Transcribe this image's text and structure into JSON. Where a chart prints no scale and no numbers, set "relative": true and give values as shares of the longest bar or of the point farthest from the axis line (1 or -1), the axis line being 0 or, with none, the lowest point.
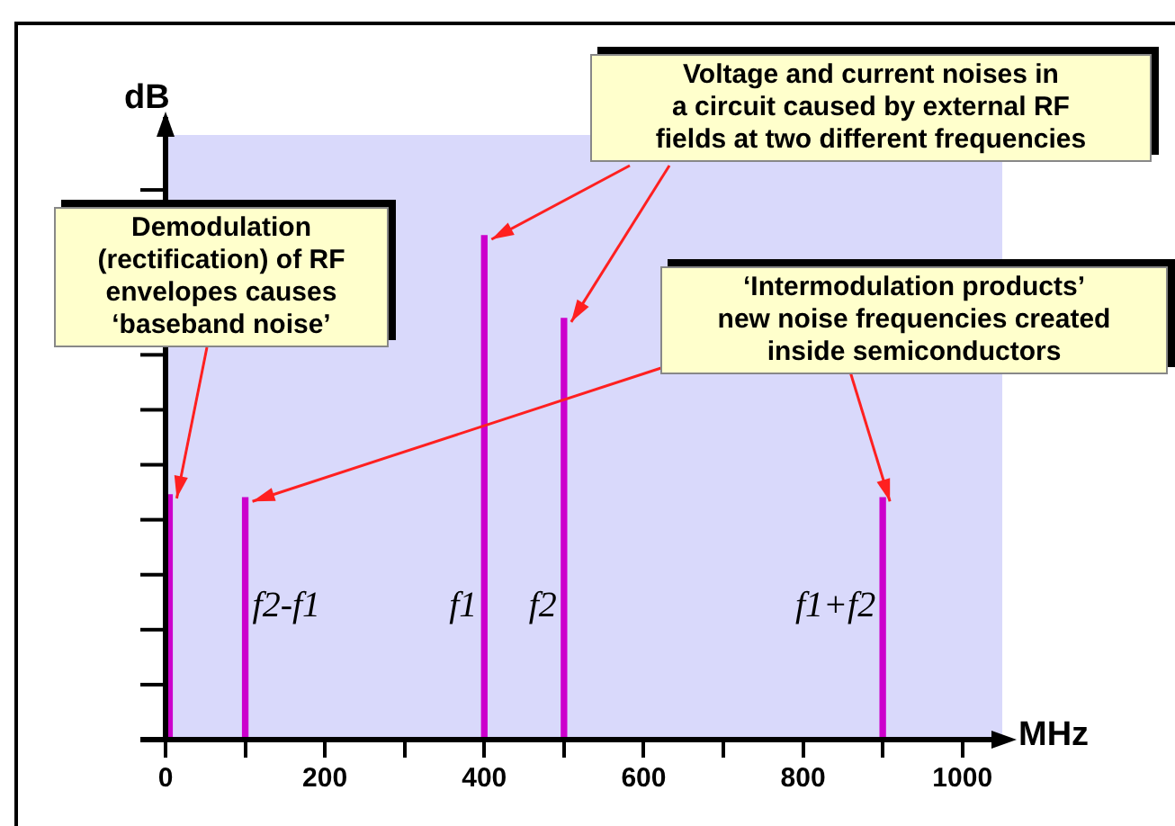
{
  "chart_data": {
    "type": "bar",
    "relative": true,
    "ylabel": "dB",
    "xlabel": "MHz",
    "series": [
      {
        "color": "#cc00cc",
        "x": [
          5
        ],
        "values": [
          0.486
        ]
      },
      {
        "name": "f2-f1",
        "color": "#cc00cc",
        "x": [
          100
        ],
        "values": [
          0.48
        ]
      },
      {
        "name": "f1",
        "color": "#cc00cc",
        "x": [
          400
        ],
        "values": [
          1
        ]
      },
      {
        "name": "f2",
        "color": "#cc00cc",
        "x": [
          500
        ],
        "values": [
          0.836
        ]
      },
      {
        "name": "f1+f2",
        "color": "#cc00cc",
        "x": [
          900
        ],
        "values": [
          0.48
        ]
      }
    ],
    "xlim": [
      0,
      1050
    ],
    "xticks": [
      0,
      {
        "value": 100,
        "label": null
      },
      200,
      {
        "value": 300,
        "label": null
      },
      400,
      {
        "value": 500,
        "label": null
      },
      600,
      {
        "value": 700,
        "label": null
      },
      800,
      {
        "value": 900,
        "label": null
      },
      1000
    ],
    "grid": false,
    "annotations": [
      "Demodulation (rectification) of RF envelopes causes ‘baseband noise’",
      "Voltage and current noises in a circuit caused by external RF fields at two different frequencies",
      "‘Intermodulation products’ new noise frequencies created inside semiconductors"
    ]
  }
}
